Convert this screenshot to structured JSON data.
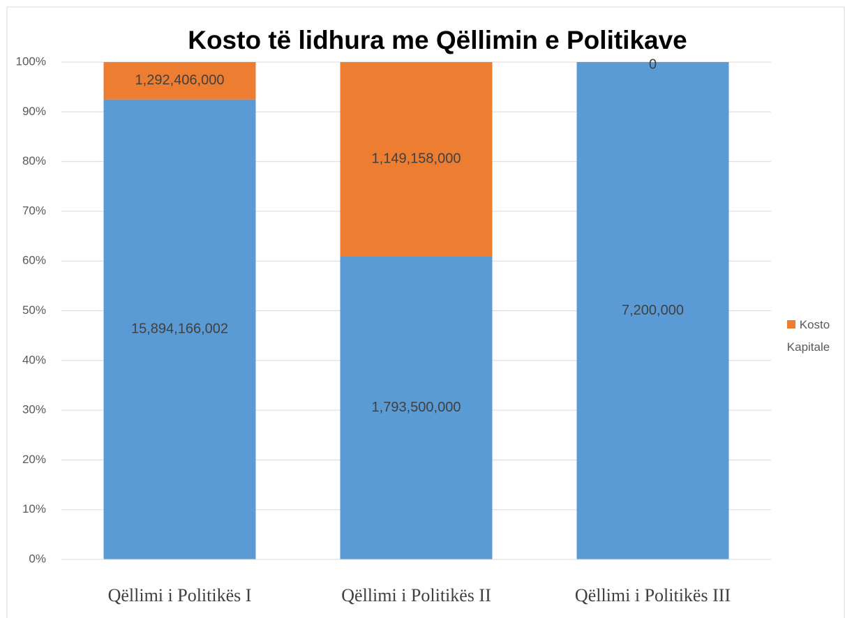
{
  "chart_data": {
    "type": "bar",
    "stacked": "percent",
    "title": "Kosto të lidhura me Qëllimin e Politikave",
    "categories": [
      "Qëllimi i Politikës I",
      "Qëllimi i Politikës II",
      "Qëllimi i Politikës III"
    ],
    "series": [
      {
        "color": "#5b9bd5",
        "values": [
          15894166002,
          1793500000,
          7200000
        ],
        "value_labels": [
          "15,894,166,002",
          "1,793,500,000",
          "7,200,000"
        ]
      },
      {
        "name": "Kosto Kapitale",
        "color": "#ed7d31",
        "values": [
          1292406000,
          1149158000,
          0
        ],
        "value_labels": [
          "1,292,406,000",
          "1,149,158,000",
          "0"
        ]
      }
    ],
    "ylim": [
      0,
      100
    ],
    "yticks": [
      {
        "value": 0,
        "label": "0%"
      },
      {
        "value": 10,
        "label": "10%"
      },
      {
        "value": 20,
        "label": "20%"
      },
      {
        "value": 30,
        "label": "30%"
      },
      {
        "value": 40,
        "label": "40%"
      },
      {
        "value": 50,
        "label": "50%"
      },
      {
        "value": 60,
        "label": "60%"
      },
      {
        "value": 70,
        "label": "70%"
      },
      {
        "value": 80,
        "label": "80%"
      },
      {
        "value": 90,
        "label": "90%"
      },
      {
        "value": 100,
        "label": "100%"
      }
    ],
    "grid": true,
    "legend": "right"
  }
}
